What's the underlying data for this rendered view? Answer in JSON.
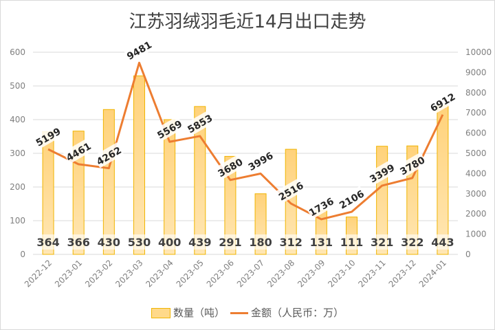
{
  "chart_data": {
    "type": "bar+line",
    "title": "江苏羽绒羽毛近14月出口走势",
    "categories": [
      "2022-12",
      "2023-01",
      "2023-02",
      "2023-03",
      "2023-04",
      "2023-05",
      "2023-06",
      "2023-07",
      "2023-08",
      "2023-09",
      "2023-10",
      "2023-11",
      "2023-12",
      "2024-01"
    ],
    "series": [
      {
        "name": "数量（吨）",
        "type": "bar",
        "axis": "left",
        "values": [
          364,
          366,
          430,
          530,
          400,
          439,
          291,
          180,
          312,
          131,
          111,
          321,
          322,
          443
        ]
      },
      {
        "name": "金额（人民币：万）",
        "type": "line",
        "axis": "right",
        "values": [
          5199,
          4461,
          4262,
          9481,
          5569,
          5853,
          3680,
          3996,
          2516,
          1736,
          2106,
          3399,
          3780,
          6912
        ]
      }
    ],
    "y_left": {
      "range": [
        0,
        600
      ],
      "ticks": [
        0,
        100,
        200,
        300,
        400,
        500,
        600
      ]
    },
    "y_right": {
      "range": [
        0,
        10000
      ],
      "ticks": [
        0,
        1000,
        2000,
        3000,
        4000,
        5000,
        6000,
        7000,
        8000,
        9000,
        10000
      ]
    },
    "grid": true,
    "legend": "bottom",
    "colors": {
      "bar_fill": "#FFD98A",
      "bar_border": "#F0B400",
      "line": "#ED7D31"
    }
  }
}
